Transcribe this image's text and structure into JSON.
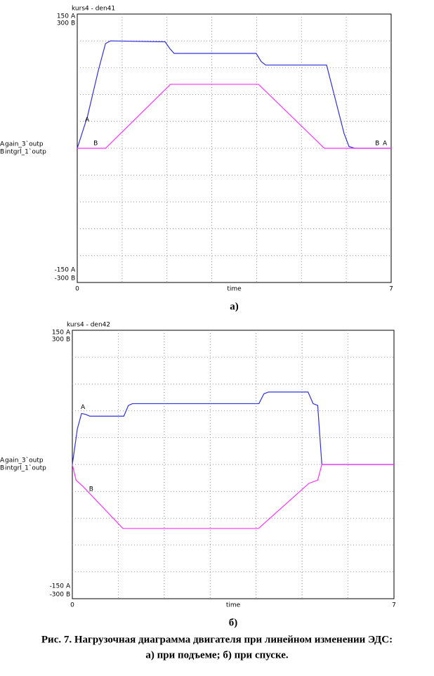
{
  "chart_data": [
    {
      "type": "line",
      "title": "kurs4 - den41",
      "caption": "а)",
      "xlabel": "time",
      "xlim": [
        0,
        7
      ],
      "xticks": [
        0,
        7
      ],
      "ylim": [
        -150,
        150
      ],
      "yticks": [
        -150,
        150
      ],
      "y2lim": [
        -300,
        300
      ],
      "y2ticks": [
        -300,
        300
      ],
      "grid": true,
      "series": [
        {
          "name": "gain_3`outp",
          "marker": "A",
          "color": "#3030e0",
          "x": [
            0,
            0.23,
            0.47,
            0.63,
            0.74,
            1.96,
            2.07,
            2.16,
            3.99,
            4.1,
            4.2,
            5.56,
            5.95,
            6.06,
            6.19,
            7
          ],
          "values": [
            0,
            36,
            87,
            117,
            120,
            119,
            111,
            106,
            106,
            97,
            93,
            93,
            16.5,
            2,
            0,
            0
          ]
        },
        {
          "name": "intgrl_1`outp",
          "marker": "B",
          "color": "#ff30ff",
          "axis": "y2",
          "x": [
            0,
            0.63,
            2.08,
            4.04,
            5.51,
            7
          ],
          "values": [
            0,
            0,
            143,
            143,
            0,
            0
          ]
        }
      ],
      "annotations": [
        {
          "text": "A",
          "x": 0.22,
          "y": 32
        },
        {
          "text": "B",
          "x": 0.41,
          "y": 5.5
        },
        {
          "text": "B",
          "x": 6.69,
          "y": 5.5
        },
        {
          "text": "A",
          "x": 6.86,
          "y": 5.5
        }
      ]
    },
    {
      "type": "line",
      "title": "kurs4 - den42",
      "caption": "б)",
      "xlabel": "time",
      "xlim": [
        0,
        7
      ],
      "xticks": [
        0,
        7
      ],
      "ylim": [
        -150,
        150
      ],
      "yticks": [
        -150,
        150
      ],
      "y2lim": [
        -300,
        300
      ],
      "y2ticks": [
        -300,
        300
      ],
      "grid": true,
      "series": [
        {
          "name": "gain_3`outp",
          "marker": "A",
          "color": "#3030e0",
          "x": [
            0,
            0.11,
            0.2,
            0.29,
            0.38,
            1.12,
            1.22,
            1.31,
            4.06,
            4.17,
            4.27,
            5.13,
            5.24,
            5.34,
            5.43,
            7
          ],
          "values": [
            0,
            40,
            57,
            56,
            54,
            54,
            66,
            68,
            68,
            79,
            81,
            81,
            68,
            66,
            0,
            0
          ]
        },
        {
          "name": "intgrl_1`outp",
          "marker": "B",
          "color": "#ff30ff",
          "axis": "y2",
          "x": [
            0,
            0.08,
            0.23,
            1.1,
            4.05,
            5.15,
            5.34,
            5.43,
            7
          ],
          "values": [
            0,
            -35,
            -49,
            -143,
            -143,
            -42,
            -35,
            0,
            0
          ]
        }
      ],
      "annotations": [
        {
          "text": "A",
          "x": 0.23,
          "y": 64
        },
        {
          "text": "B",
          "x": 0.41,
          "y": -27.5
        }
      ]
    }
  ],
  "figure_caption": [
    "Рис. 7. Нагрузочная диаграмма двигателя при линейном изменении ЭДС:",
    "а) при подъеме; б) при спуске."
  ]
}
